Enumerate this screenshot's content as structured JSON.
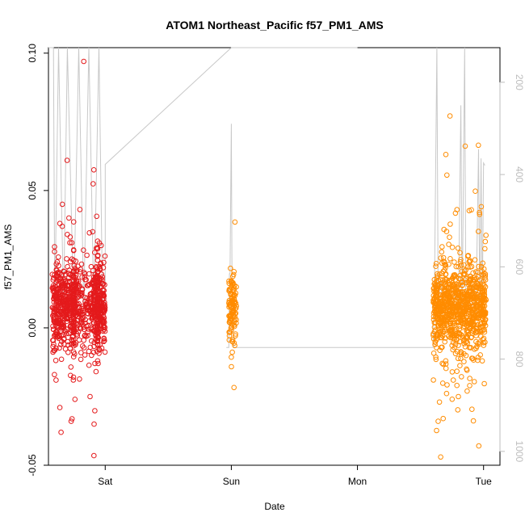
{
  "chart_data": {
    "type": "scatter",
    "title": "ATOM1 Northeast_Pacific f57_PM1_AMS",
    "xlabel": "Date",
    "ylabel": "f57_PM1_AMS",
    "x_ticks": [
      "Sat",
      "Sun",
      "Mon",
      "Tue"
    ],
    "x_range_days": [
      -0.45,
      3.13
    ],
    "ylim": [
      -0.05,
      0.102
    ],
    "y_ticks": [
      -0.05,
      0.0,
      0.05,
      0.1
    ],
    "y_tick_labels": [
      "-0.05",
      "0.00",
      "0.05",
      "0.10"
    ],
    "right_axis": {
      "label": "",
      "color": "#bdbdbd",
      "inverted": true,
      "range": [
        125,
        1030
      ],
      "ticks": [
        200,
        400,
        600,
        800,
        1000
      ],
      "tick_labels": [
        "200",
        "400",
        "600",
        "800",
        "1000"
      ]
    },
    "grid": false,
    "series": [
      {
        "color": "#e41a1c",
        "marker": "open-circle",
        "x_range_days": [
          -0.42,
          0.0
        ],
        "y_core": [
          -0.005,
          0.02
        ],
        "outliers": [
          [
            -0.39,
            -0.019
          ],
          [
            -0.38,
            0.024
          ],
          [
            -0.36,
            0.038
          ],
          [
            -0.35,
            -0.038
          ],
          [
            -0.34,
            0.045
          ],
          [
            -0.36,
            -0.029
          ],
          [
            -0.27,
            -0.034
          ],
          [
            -0.24,
            -0.026
          ],
          [
            -0.17,
            0.097
          ],
          [
            -0.12,
            -0.025
          ],
          [
            -0.1,
            0.035
          ],
          [
            -0.07,
            0.029
          ],
          [
            -0.06,
            -0.012
          ],
          [
            -0.3,
            0.034
          ],
          [
            -0.28,
            0.031
          ]
        ]
      },
      {
        "color": "#ff8c00",
        "marker": "open-circle",
        "x_range_days": [
          0.98,
          1.04
        ],
        "y_core": [
          -0.002,
          0.016
        ],
        "outliers": []
      },
      {
        "color": "#ff8c00",
        "marker": "open-circle",
        "x_range_days": [
          2.6,
          3.02
        ],
        "y_core": [
          -0.005,
          0.02
        ],
        "outliers": [
          [
            2.64,
            -0.034
          ],
          [
            2.66,
            -0.047
          ],
          [
            2.68,
            -0.033
          ],
          [
            2.65,
            -0.027
          ],
          [
            2.73,
            0.033
          ],
          [
            2.8,
            -0.025
          ],
          [
            2.87,
            -0.023
          ],
          [
            2.89,
            -0.021
          ],
          [
            2.76,
            -0.019
          ],
          [
            2.7,
            -0.012
          ]
        ]
      }
    ],
    "reference_line": {
      "color": "#c8c8c8",
      "description_points": [
        [
          -0.45,
          120
        ],
        [
          -0.41,
          120
        ],
        [
          -0.4,
          690
        ],
        [
          -0.37,
          90
        ],
        [
          -0.33,
          690
        ],
        [
          -0.3,
          80
        ],
        [
          -0.25,
          690
        ],
        [
          -0.21,
          70
        ],
        [
          -0.17,
          690
        ],
        [
          -0.13,
          60
        ],
        [
          -0.09,
          690
        ],
        [
          -0.05,
          90
        ],
        [
          -0.02,
          690
        ],
        [
          0.0,
          690
        ],
        [
          0.0,
          378
        ],
        [
          1.0,
          60
        ],
        [
          2.0,
          0
        ]
      ]
    }
  }
}
